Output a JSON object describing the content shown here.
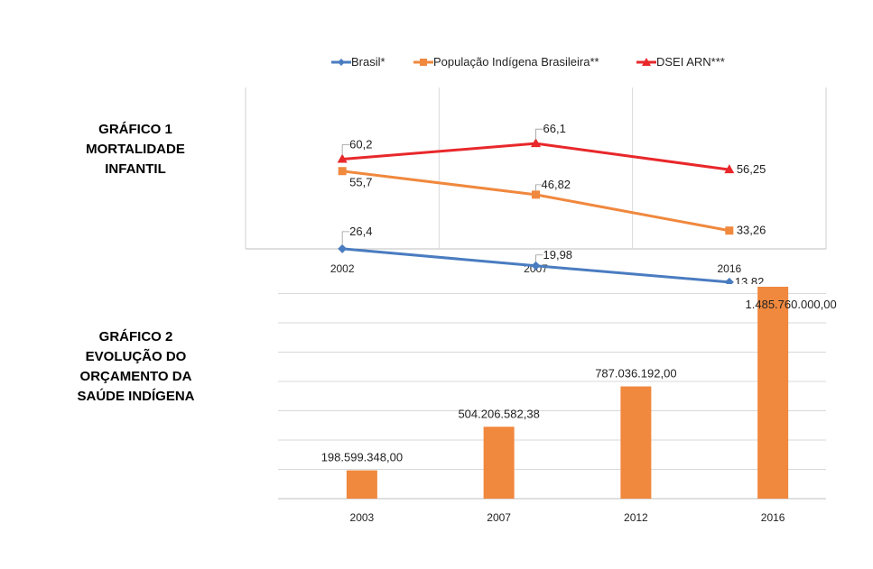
{
  "chart1_title": {
    "line1": "GRÁFICO 1",
    "line2": "MORTALIDADE",
    "line3": "INFANTIL"
  },
  "chart2_title": {
    "line1": "GRÁFICO 2",
    "line2": "EVOLUÇÃO DO",
    "line3": "ORÇAMENTO DA",
    "line4": "SAÚDE INDÍGENA"
  },
  "chart_data": [
    {
      "type": "line",
      "categories": [
        "2002",
        "2007",
        "2016"
      ],
      "legend_position": "top",
      "grid": {
        "vertical": true,
        "horizontal": false
      },
      "series": [
        {
          "name": "Brasil*",
          "color": "#4a7cc0",
          "values": [
            26.4,
            19.98,
            13.82
          ],
          "labels": [
            "26,4",
            "19,98",
            "13,82"
          ]
        },
        {
          "name": "População Indígena Brasileira**",
          "color": "#f0883e",
          "values": [
            55.7,
            46.82,
            33.26
          ],
          "labels": [
            "55,7",
            "46,82",
            "33,26"
          ]
        },
        {
          "name": "DSEI ARN***",
          "color": "#e8282b",
          "values": [
            60.2,
            66.1,
            56.25
          ],
          "labels": [
            "60,2",
            "66,1",
            "56,25"
          ]
        }
      ]
    },
    {
      "type": "bar",
      "categories": [
        "2003",
        "2007",
        "2012",
        "2016"
      ],
      "values": [
        198599348.0,
        504206582.38,
        787036192.0,
        1485760000.0
      ],
      "labels": [
        "198.599.348,00",
        "504.206.582,38",
        "787.036.192,00",
        "1.485.760.000,00"
      ],
      "color": "#f0883e",
      "grid": {
        "horizontal": true
      }
    }
  ]
}
